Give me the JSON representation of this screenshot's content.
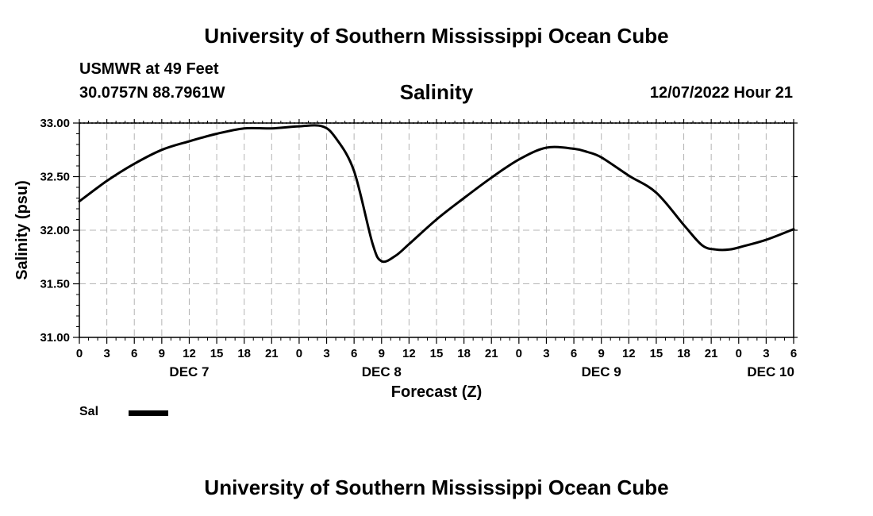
{
  "header": {
    "title": "University of Southern Mississippi Ocean Cube",
    "station": "USMWR at 49 Feet",
    "coords": "30.0757N  88.7961W",
    "datetime": "12/07/2022 Hour 21"
  },
  "footer": {
    "title": "University of Southern Mississippi Ocean Cube"
  },
  "legend": {
    "label": "Sal"
  },
  "colors": {
    "line": "#000000",
    "grid": "#b4b4b4",
    "background": "#ffffff"
  },
  "chart_data": {
    "type": "line",
    "title": "Salinity",
    "xlabel": "Forecast (Z)",
    "ylabel": "Salinity (psu)",
    "ylim": [
      31.0,
      33.0
    ],
    "yticks": [
      31.0,
      31.5,
      32.0,
      32.5,
      33.0
    ],
    "ytick_labels": [
      "31.00",
      "31.50",
      "32.00",
      "32.50",
      "33.00"
    ],
    "xlim": [
      0,
      78
    ],
    "xticks": [
      0,
      3,
      6,
      9,
      12,
      15,
      18,
      21,
      24,
      27,
      30,
      33,
      36,
      39,
      42,
      45,
      48,
      51,
      54,
      57,
      60,
      63,
      66,
      69,
      72,
      75,
      78
    ],
    "xtick_labels": [
      "0",
      "3",
      "6",
      "9",
      "12",
      "15",
      "18",
      "21",
      "0",
      "3",
      "6",
      "9",
      "12",
      "15",
      "18",
      "21",
      "0",
      "3",
      "6",
      "9",
      "12",
      "15",
      "18",
      "21",
      "0",
      "3",
      "6"
    ],
    "date_labels": [
      {
        "x": 12,
        "label": "DEC 7"
      },
      {
        "x": 33,
        "label": "DEC 8"
      },
      {
        "x": 57,
        "label": "DEC 9"
      },
      {
        "x": 75.5,
        "label": "DEC 10"
      }
    ],
    "grid": true,
    "series": [
      {
        "name": "Sal",
        "x": [
          0,
          3,
          6,
          9,
          12,
          15,
          18,
          21,
          24,
          26.5,
          28,
          30,
          32,
          33,
          34.5,
          36,
          39,
          42,
          45,
          48,
          51,
          54,
          55.5,
          57,
          60,
          63,
          66,
          68,
          69.5,
          71,
          72.5,
          75,
          78
        ],
        "y": [
          32.27,
          32.46,
          32.62,
          32.75,
          32.83,
          32.9,
          32.95,
          32.95,
          32.97,
          32.97,
          32.86,
          32.55,
          31.88,
          31.71,
          31.76,
          31.87,
          32.1,
          32.3,
          32.49,
          32.66,
          32.77,
          32.76,
          32.73,
          32.68,
          32.51,
          32.35,
          32.05,
          31.86,
          31.82,
          31.82,
          31.85,
          31.91,
          32.01
        ]
      }
    ]
  }
}
